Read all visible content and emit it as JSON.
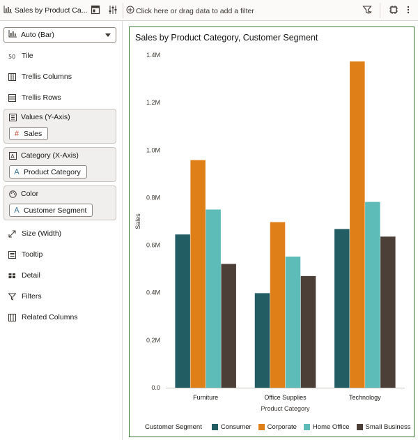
{
  "topbar": {
    "canvas_tab_label": "Sales by Product Ca...",
    "filter_hint": "Click here or drag data to add a filter"
  },
  "grammar": {
    "chart_type": "Auto (Bar)",
    "rows": {
      "tile": "Tile",
      "trellis_columns": "Trellis Columns",
      "trellis_rows": "Trellis Rows",
      "size": "Size (Width)",
      "tooltip": "Tooltip",
      "detail": "Detail",
      "filters": "Filters",
      "related_columns": "Related Columns"
    },
    "values_well": {
      "label": "Values (Y-Axis)",
      "pill": "Sales"
    },
    "category_well": {
      "label": "Category (X-Axis)",
      "pill": "Product Category"
    },
    "color_well": {
      "label": "Color",
      "pill": "Customer Segment"
    }
  },
  "colors": {
    "consumer": "#225d63",
    "corporate": "#de7f17",
    "home_office": "#5dbcb7",
    "small_business": "#4b3f37",
    "axis_text": "#3a3631",
    "grid": "#e4e2df"
  },
  "chart_data": {
    "type": "bar",
    "title": "Sales by Product Category, Customer Segment",
    "xlabel": "Product Category",
    "ylabel": "Sales",
    "categories": [
      "Furniture",
      "Office Supplies",
      "Technology"
    ],
    "ylim": [
      0,
      1400000
    ],
    "yticks": [
      "0.0",
      "0.2M",
      "0.4M",
      "0.6M",
      "0.8M",
      "1.0M",
      "1.2M",
      "1.4M"
    ],
    "grid": false,
    "legend_title": "Customer Segment",
    "legend_position": "bottom",
    "series": [
      {
        "name": "Consumer",
        "values": [
          645000,
          398000,
          668000
        ]
      },
      {
        "name": "Corporate",
        "values": [
          958000,
          697000,
          1373000
        ]
      },
      {
        "name": "Home Office",
        "values": [
          750000,
          552000,
          782000
        ]
      },
      {
        "name": "Small Business",
        "values": [
          521000,
          470000,
          636000
        ]
      }
    ]
  }
}
